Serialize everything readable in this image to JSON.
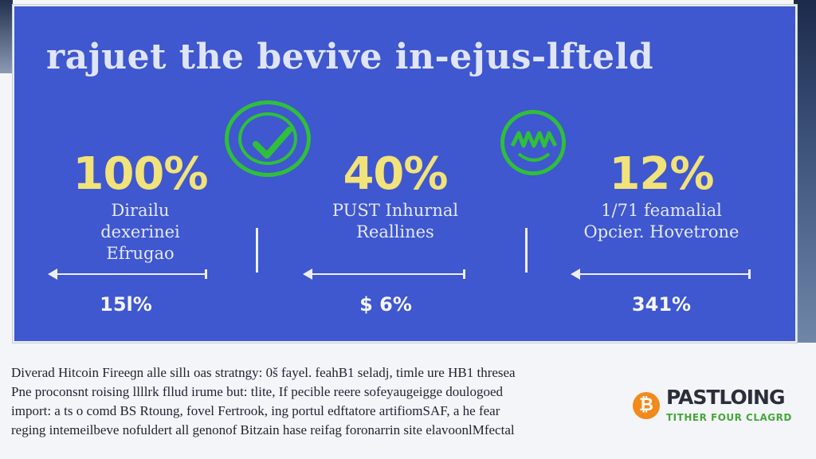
{
  "headline": "rajuet the bevive in-ejus-lfteld",
  "stats": [
    {
      "value": "100%",
      "label_lines": [
        "Dirailu",
        "dexerinei",
        "Efrugao"
      ],
      "sub_value": "15l%"
    },
    {
      "value": "40%",
      "label_lines": [
        "PUST Inhurnal",
        "Reallines"
      ],
      "sub_value": "$ 6%"
    },
    {
      "value": "12%",
      "label_lines": [
        "1/71 feamalial",
        "Opcier. Hovetrone"
      ],
      "sub_value": "341%"
    }
  ],
  "icons": {
    "check": "check-circle-icon",
    "face": "grin-face-icon"
  },
  "body_lines": [
    "Diverad Hitcoin Fireeɡn alle sillı oas stratngy: 0š fayel. feahB1 seladj, timle ure HB1 thresea",
    "Pne proconsnt roising llllrk fllud irume but: tlite, If pecible reere sofeyaugeigge doulogoed",
    "import: a ts o comd BS Rtoung, fovel Fertrook, ing portul edftatore artifiomSAF, a he fear",
    "reging intemeilbeve nofuldert all genonof Bitzain hase reifag foronarrin site elavoonlMfectal"
  ],
  "logo": {
    "coin_glyph": "₿",
    "title": "PASTLOING",
    "tagline": "TITHER FOUR CLAGRD"
  },
  "colors": {
    "panel_blue": "#3f57cf",
    "stat_yellow": "#f2e27a",
    "badge_green": "#2fbf3a",
    "coin_orange": "#f18a1b"
  }
}
